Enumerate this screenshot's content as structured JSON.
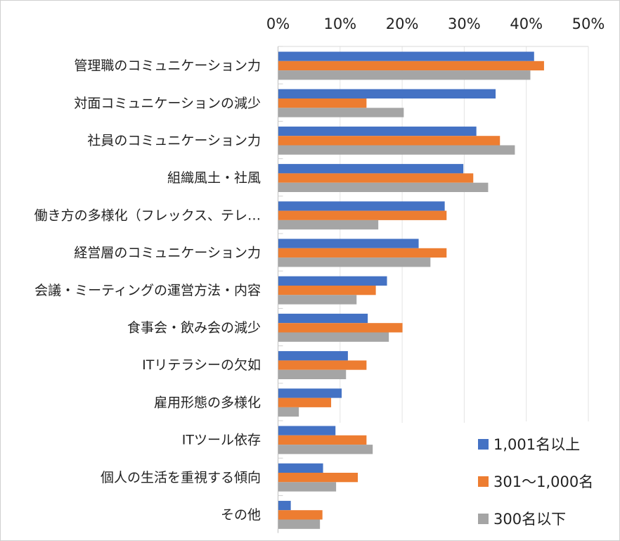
{
  "chart_data": {
    "type": "bar",
    "orientation": "horizontal",
    "title": "",
    "xlabel": "",
    "ylabel": "",
    "xlim": [
      0,
      50
    ],
    "x_ticks": [
      "0%",
      "10%",
      "20%",
      "30%",
      "40%",
      "50%"
    ],
    "grid": true,
    "legend_position": "bottom-right",
    "categories": [
      "管理職のコミュニケーション力",
      "対面コミュニケーションの減少",
      "社員のコミュニケーション力",
      "組織風土・社風",
      "働き方の多様化（フレックス、テレ…",
      "経営層のコミュニケーション力",
      "会議・ミーティングの運営方法・内容",
      "食事会・飲み会の減少",
      "ITリテラシーの欠如",
      "雇用形態の多様化",
      "ITツール依存",
      "個人の生活を重視する傾向",
      "その他"
    ],
    "series": [
      {
        "name": "1,001名以上",
        "color": "#4472c4",
        "values": [
          41.2,
          35.0,
          31.9,
          29.8,
          26.8,
          22.6,
          17.5,
          14.4,
          11.2,
          10.2,
          9.2,
          7.2,
          2.0
        ]
      },
      {
        "name": "301～1,000名",
        "color": "#ed7d31",
        "values": [
          42.8,
          14.2,
          35.7,
          31.4,
          27.1,
          27.1,
          15.7,
          20.0,
          14.2,
          8.5,
          14.2,
          12.8,
          7.1
        ]
      },
      {
        "name": "300名以下",
        "color": "#a5a5a5",
        "values": [
          40.6,
          20.2,
          38.1,
          33.8,
          16.1,
          24.5,
          12.6,
          17.8,
          10.9,
          3.3,
          15.2,
          9.3,
          6.7
        ]
      }
    ]
  }
}
